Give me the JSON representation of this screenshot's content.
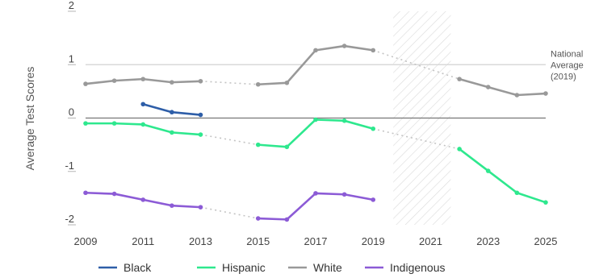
{
  "chart_data": {
    "type": "line",
    "ylabel": "Average Test Scores",
    "xlim": [
      2009,
      2025
    ],
    "ylim": [
      -2,
      2
    ],
    "x_ticks": [
      "2009",
      "2011",
      "2013",
      "2015",
      "2017",
      "2019",
      "2021",
      "2023",
      "2025"
    ],
    "y_ticks": [
      "2",
      "1",
      "0",
      "-1",
      "-2"
    ],
    "reference_line": {
      "value": 0
    },
    "annotation": {
      "y": 1,
      "lines": [
        "National",
        "Average",
        "(2019)"
      ]
    },
    "shaded_region": {
      "from": 2019.7,
      "to": 2021.7
    },
    "series": [
      {
        "name": "Black",
        "color": "#2e5ea8",
        "x": [
          2011,
          2012,
          2013
        ],
        "values": [
          0.26,
          0.11,
          0.06
        ]
      },
      {
        "name": "Hispanic",
        "color": "#2ee88e",
        "x": [
          2009,
          2010,
          2011,
          2012,
          2013,
          2015,
          2016,
          2017,
          2018,
          2019,
          2022,
          2023,
          2024,
          2025
        ],
        "values": [
          -0.1,
          -0.1,
          -0.12,
          -0.27,
          -0.31,
          -0.5,
          -0.54,
          -0.03,
          -0.05,
          -0.2,
          -0.58,
          -0.99,
          -1.4,
          -1.58
        ]
      },
      {
        "name": "White",
        "color": "#999999",
        "x": [
          2009,
          2010,
          2011,
          2012,
          2013,
          2015,
          2016,
          2017,
          2018,
          2019,
          2022,
          2023,
          2024,
          2025
        ],
        "values": [
          0.64,
          0.7,
          0.73,
          0.67,
          0.69,
          0.63,
          0.66,
          1.27,
          1.35,
          1.27,
          0.73,
          0.58,
          0.43,
          0.46
        ]
      },
      {
        "name": "Indigenous",
        "color": "#8c5bd6",
        "x": [
          2009,
          2010,
          2011,
          2012,
          2013,
          2015,
          2016,
          2017,
          2018,
          2019
        ],
        "values": [
          -1.4,
          -1.42,
          -1.53,
          -1.64,
          -1.67,
          -1.88,
          -1.9,
          -1.41,
          -1.43,
          -1.53
        ]
      }
    ],
    "gap_connections": [
      {
        "series": "Hispanic",
        "from": [
          2013,
          -0.31
        ],
        "to": [
          2015,
          -0.5
        ]
      },
      {
        "series": "Hispanic",
        "from": [
          2019,
          -0.2
        ],
        "to": [
          2022,
          -0.58
        ]
      },
      {
        "series": "White",
        "from": [
          2013,
          0.69
        ],
        "to": [
          2015,
          0.63
        ]
      },
      {
        "series": "White",
        "from": [
          2019,
          1.27
        ],
        "to": [
          2022,
          0.73
        ]
      },
      {
        "series": "Indigenous",
        "from": [
          2013,
          -1.67
        ],
        "to": [
          2015,
          -1.88
        ]
      }
    ],
    "legend": {
      "position": "bottom",
      "entries": [
        "Black",
        "Hispanic",
        "White",
        "Indigenous"
      ]
    }
  }
}
